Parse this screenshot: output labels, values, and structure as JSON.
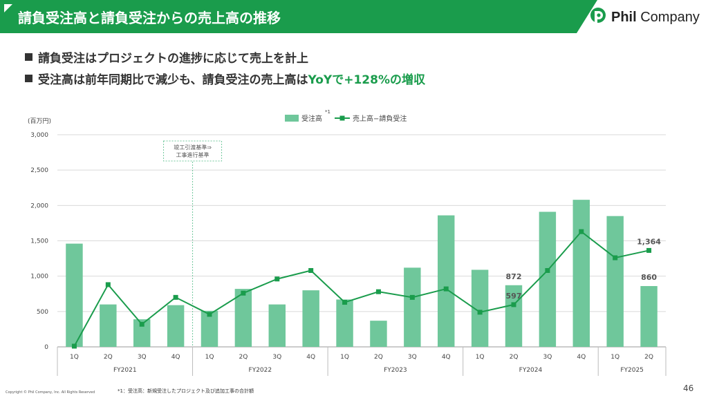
{
  "header": {
    "title": "請負受注高と請負受注からの売上高の推移"
  },
  "logo": {
    "brand": "Phil",
    "suffix": "Company"
  },
  "bullets": {
    "b1": "請負受注はプロジェクトの進捗に応じて売上を計上",
    "b2_pre": "受注高は前年同期比で減少も、請負受注の売上高は",
    "b2_hl": "YoYで+128%の増収"
  },
  "chart_data": {
    "type": "bar+line",
    "unit": "(百万円)",
    "ylim": [
      0,
      3000
    ],
    "yticks": [
      "3,000",
      "2,500",
      "2,000",
      "1,500",
      "1,000",
      "500",
      "0"
    ],
    "ytick_values": [
      3000,
      2500,
      2000,
      1500,
      1000,
      500,
      0
    ],
    "categories": [
      "1Q",
      "2Q",
      "3Q",
      "4Q",
      "1Q",
      "2Q",
      "3Q",
      "4Q",
      "1Q",
      "2Q",
      "3Q",
      "4Q",
      "1Q",
      "2Q",
      "3Q",
      "4Q",
      "1Q",
      "2Q"
    ],
    "groups": [
      {
        "label": "FY2021",
        "count": 4
      },
      {
        "label": "FY2022",
        "count": 4
      },
      {
        "label": "FY2023",
        "count": 4
      },
      {
        "label": "FY2024",
        "count": 4
      },
      {
        "label": "FY2025",
        "count": 2
      }
    ],
    "series": [
      {
        "name": "受注高",
        "kind": "bar",
        "color": "#6fc79b",
        "values": [
          1460,
          600,
          390,
          590,
          510,
          820,
          600,
          800,
          670,
          370,
          1120,
          1860,
          1090,
          872,
          1910,
          2080,
          1850,
          860
        ]
      },
      {
        "name": "売上高−請負受注",
        "kind": "line",
        "color": "#1a9c4c",
        "values": [
          10,
          880,
          320,
          700,
          460,
          760,
          960,
          1080,
          630,
          780,
          700,
          820,
          490,
          597,
          1080,
          1630,
          1260,
          1364
        ]
      }
    ],
    "legend_note": "*1",
    "data_labels": [
      {
        "series": 0,
        "index": 13,
        "text": "872"
      },
      {
        "series": 1,
        "index": 13,
        "text": "597"
      },
      {
        "series": 1,
        "index": 17,
        "text": "1,364"
      },
      {
        "series": 0,
        "index": 17,
        "text": "860"
      }
    ],
    "annotation": {
      "line1": "竣工引渡基準⇒",
      "line2": "工事進行基準",
      "after_index": 3
    },
    "grid": true,
    "legend_position": "top"
  },
  "footer": {
    "copyright": "Copyright © Phil Company, Inc.  All Rights Reserved",
    "footnote": "*1：受注高：新規受注したプロジェクト及び追加工事の合計額",
    "page": "46"
  }
}
